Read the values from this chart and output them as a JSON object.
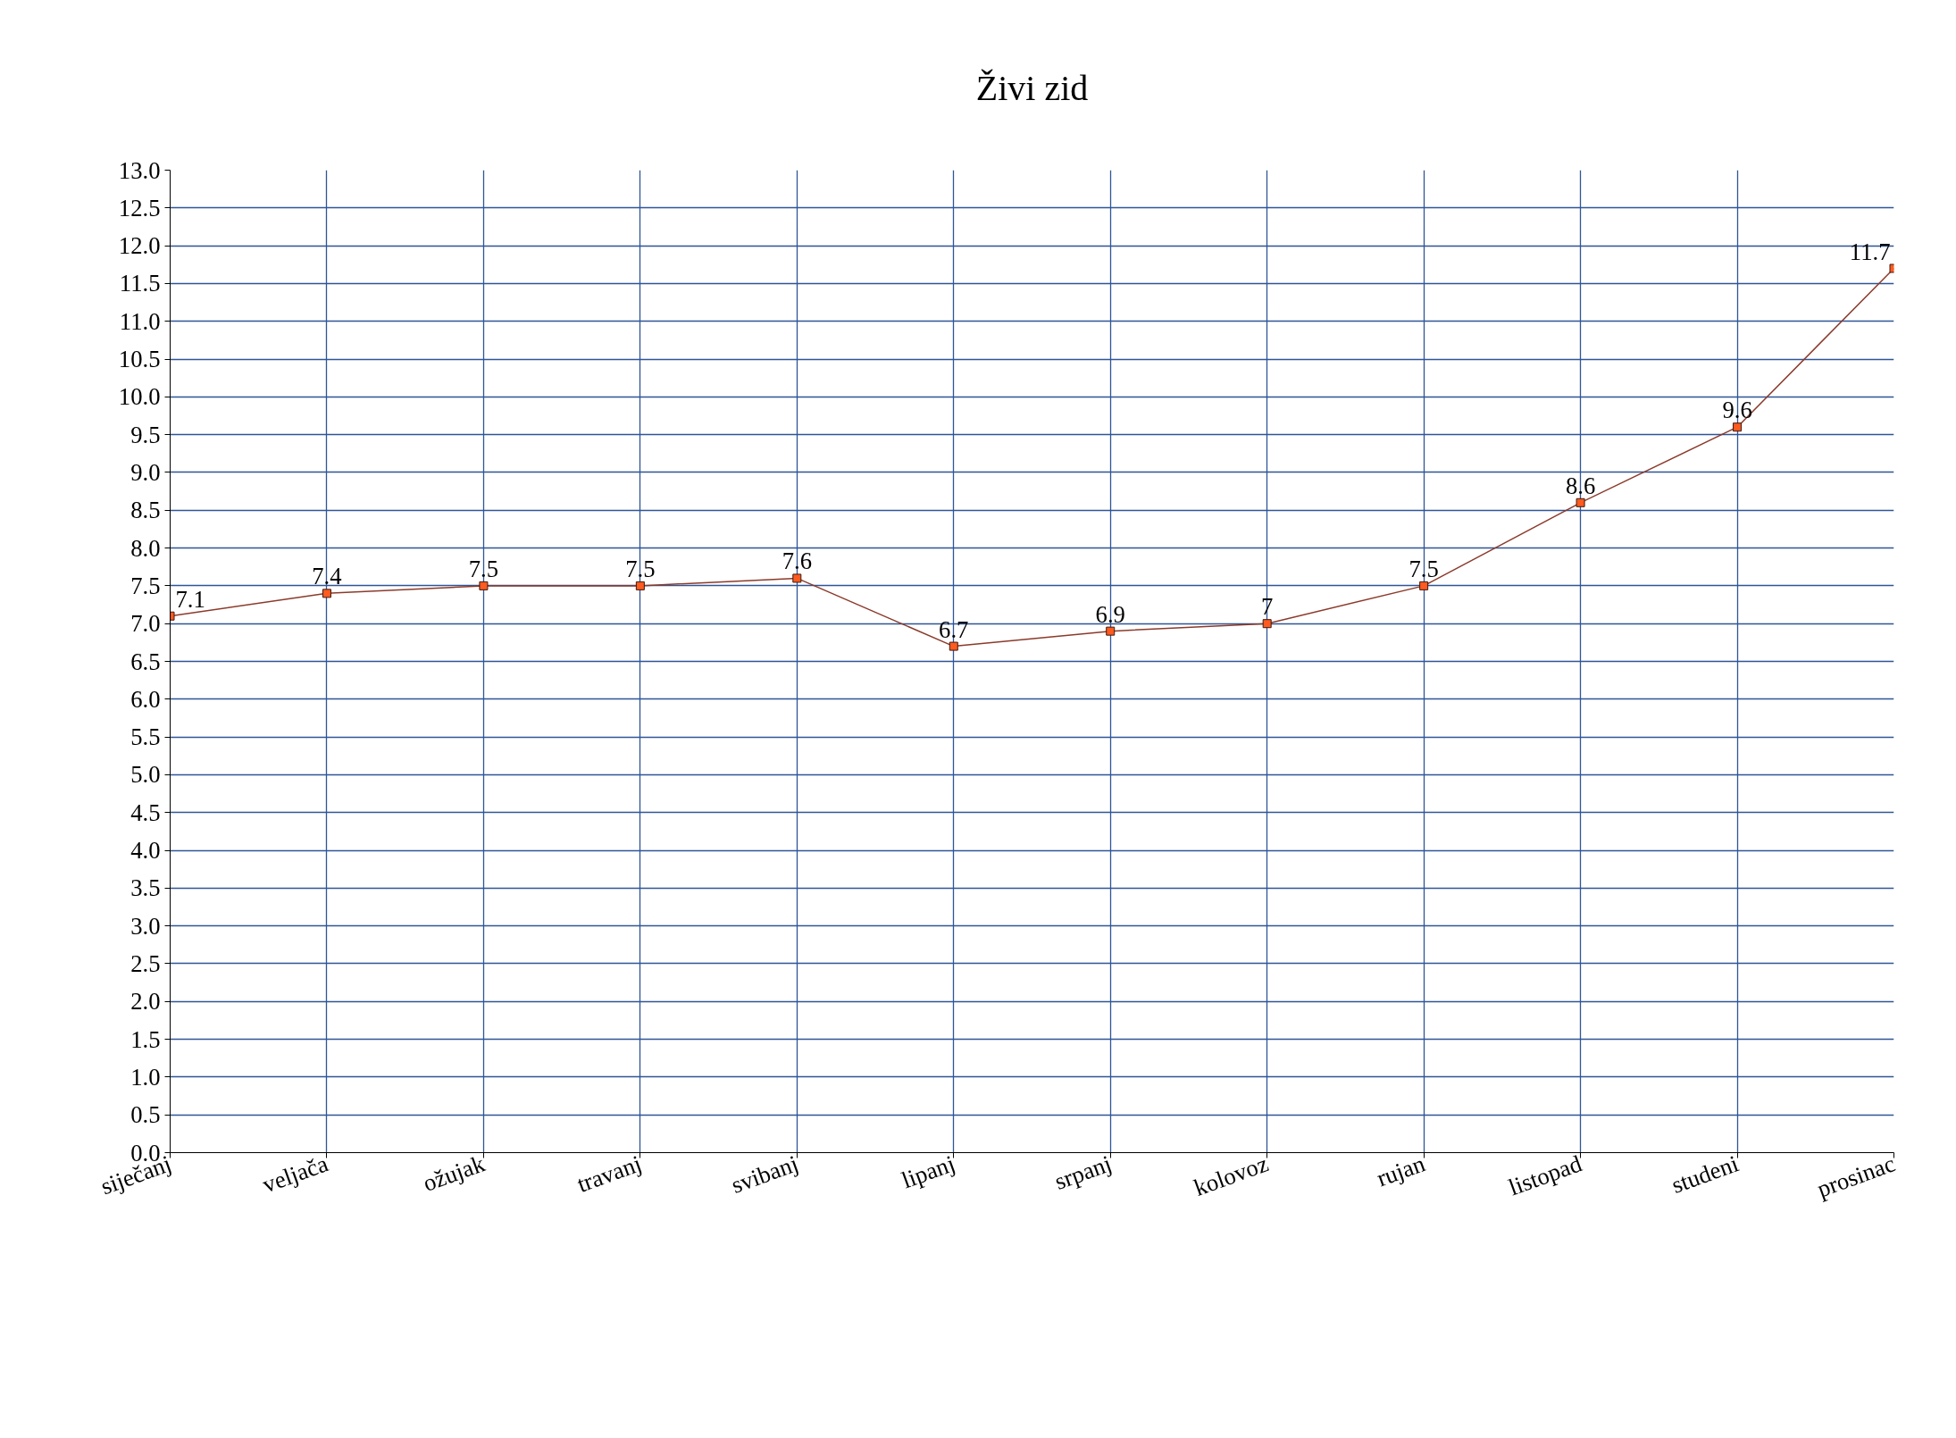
{
  "chart_data": {
    "type": "line",
    "title": "Živi zid",
    "categories": [
      "siječanj",
      "veljača",
      "ožujak",
      "travanj",
      "svibanj",
      "lipanj",
      "srpanj",
      "kolovoz",
      "rujan",
      "listopad",
      "studeni",
      "prosinac"
    ],
    "series": [
      {
        "color": "#8b3a2a",
        "values": [
          7.1,
          7.4,
          7.5,
          7.5,
          7.6,
          6.7,
          6.9,
          7,
          7.5,
          8.6,
          9.6,
          11.7
        ]
      }
    ],
    "ylim": [
      0,
      13
    ],
    "yticks": [
      {
        "value": 0,
        "label": "0.0"
      },
      0.5,
      {
        "value": 1,
        "label": "1.0"
      },
      1.5,
      {
        "value": 2,
        "label": "2.0"
      },
      2.5,
      {
        "value": 3,
        "label": "3.0"
      },
      3.5,
      {
        "value": 4,
        "label": "4.0"
      },
      4.5,
      {
        "value": 5,
        "label": "5.0"
      },
      5.5,
      {
        "value": 6,
        "label": "6.0"
      },
      6.5,
      {
        "value": 7,
        "label": "7.0"
      },
      7.5,
      {
        "value": 8,
        "label": "8.0"
      },
      8.5,
      {
        "value": 9,
        "label": "9.0"
      },
      9.5,
      {
        "value": 10,
        "label": "10.0"
      },
      10.5,
      {
        "value": 11,
        "label": "11.0"
      },
      11.5,
      {
        "value": 12,
        "label": "12.0"
      },
      12.5,
      {
        "value": 13,
        "label": "13.0"
      }
    ],
    "grid": true,
    "marker": "square",
    "line_style": "solid",
    "data_labels": true
  }
}
